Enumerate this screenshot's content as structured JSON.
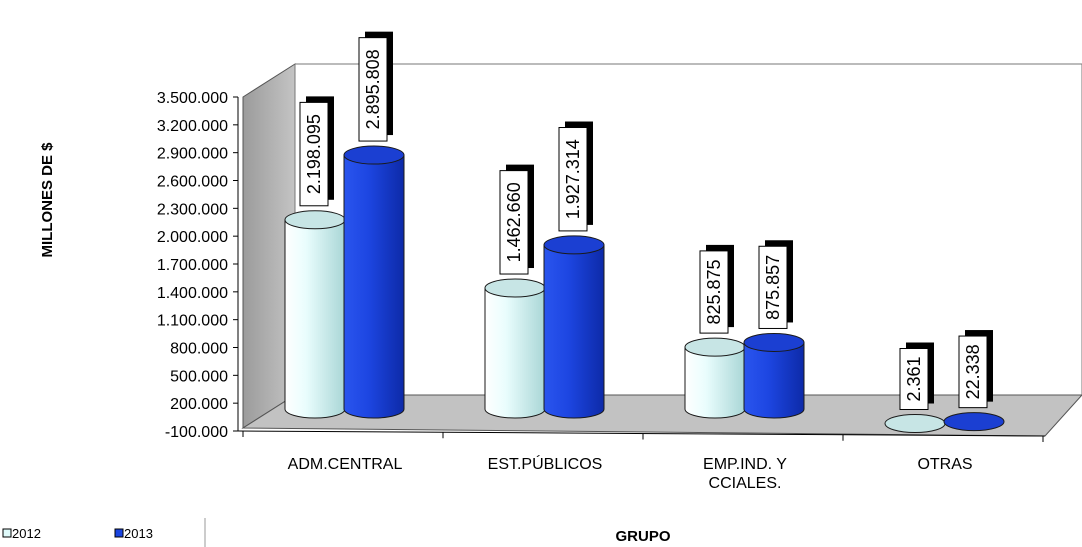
{
  "chart_data": {
    "type": "bar",
    "title": "",
    "xlabel": "GRUPO",
    "ylabel": "MILLONES DE $",
    "categories": [
      "ADM.CENTRAL",
      "EST.PÚBLICOS",
      "EMP.IND. Y|CCIALES.",
      "OTRAS"
    ],
    "series": [
      {
        "name": "2012",
        "values": [
          2198095,
          1462660,
          825875,
          2361
        ],
        "labels": [
          "2.198.095",
          "1.462.660",
          "825.875",
          "2.361"
        ],
        "color": "#dffafa"
      },
      {
        "name": "2013",
        "values": [
          2895808,
          1927314,
          875857,
          22338
        ],
        "labels": [
          "2.895.808",
          "1.927.314",
          "875.857",
          "22.338"
        ],
        "color": "#1a44e0"
      }
    ],
    "yticks": [
      "-100.000",
      "200.000",
      "500.000",
      "800.000",
      "1.100.000",
      "1.400.000",
      "1.700.000",
      "2.000.000",
      "2.300.000",
      "2.600.000",
      "2.900.000",
      "3.200.000",
      "3.500.000"
    ],
    "ylim": [
      -100000,
      3500000
    ],
    "style": "3d-cylinder",
    "legend_position": "bottom-left"
  }
}
